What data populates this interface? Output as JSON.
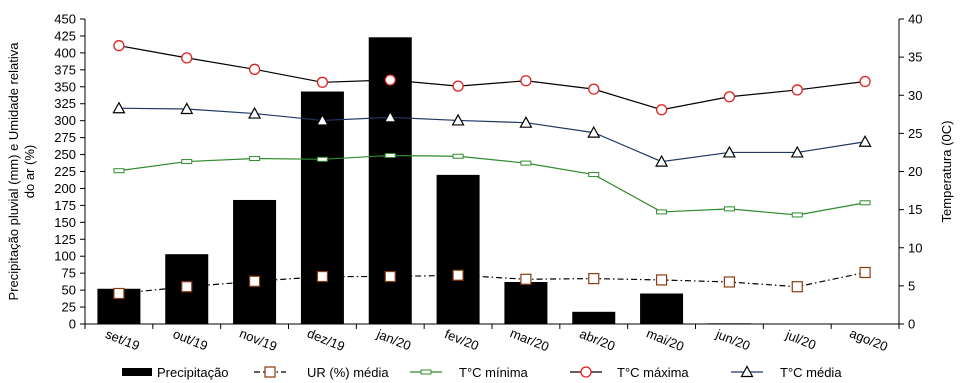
{
  "chart_data": {
    "type": "bar",
    "categories": [
      "set/19",
      "out/19",
      "nov/19",
      "dez/19",
      "jan/20",
      "fev/20",
      "mar/20",
      "abr/20",
      "mai/20",
      "jun/20",
      "jul/20",
      "ago/20"
    ],
    "bar_series": {
      "name": "Precipitação",
      "color": "#000000",
      "values": [
        52,
        103,
        183,
        343,
        423,
        220,
        62,
        18,
        45,
        1,
        0,
        0
      ]
    },
    "series": [
      {
        "name": "UR (%) média",
        "axis": "left",
        "color": "#000000",
        "marker_color": "#8B3A0F",
        "marker": "square",
        "line_style": "dashdot",
        "values": [
          45,
          55,
          63,
          70,
          70,
          72,
          66,
          67,
          65,
          62,
          55,
          76
        ]
      },
      {
        "name": "T°C mínima",
        "axis": "right",
        "color": "#2E8B2E",
        "marker": "dash",
        "values": [
          20.1,
          21.3,
          21.7,
          21.6,
          22.1,
          22.0,
          21.1,
          19.6,
          14.7,
          15.1,
          14.3,
          15.9
        ]
      },
      {
        "name": "T°C máxima",
        "axis": "right",
        "color": "#000000",
        "marker_color": "#E02020",
        "marker": "circle",
        "values": [
          36.5,
          34.9,
          33.4,
          31.7,
          32.0,
          31.2,
          31.9,
          30.8,
          28.1,
          29.8,
          30.7,
          31.8
        ]
      },
      {
        "name": "T°C média",
        "axis": "right",
        "color": "#1F3864",
        "marker": "triangle",
        "values": [
          28.3,
          28.2,
          27.6,
          26.7,
          27.1,
          26.7,
          26.4,
          25.1,
          21.3,
          22.5,
          22.5,
          23.9
        ]
      }
    ],
    "y_left": {
      "label": "Precipitação pluvial (mm) e Umidade relativa do ar (%)",
      "label_lines": [
        "Precipitação pluvial (mm) e Umidade relativa",
        "do ar (%)"
      ],
      "min": 0,
      "max": 450,
      "step": 25,
      "ticks": [
        "0",
        "25",
        "50",
        "75",
        "100",
        "125",
        "150",
        "175",
        "200",
        "225",
        "250",
        "275",
        "300",
        "325",
        "350",
        "375",
        "400",
        "425",
        "450"
      ]
    },
    "y_right": {
      "label": "Temperatura (0C)",
      "min": 0,
      "max": 40,
      "step": 5,
      "ticks": [
        "0",
        "5",
        "10",
        "15",
        "20",
        "25",
        "30",
        "35",
        "40"
      ]
    },
    "grid": false,
    "legend_position": "bottom"
  }
}
